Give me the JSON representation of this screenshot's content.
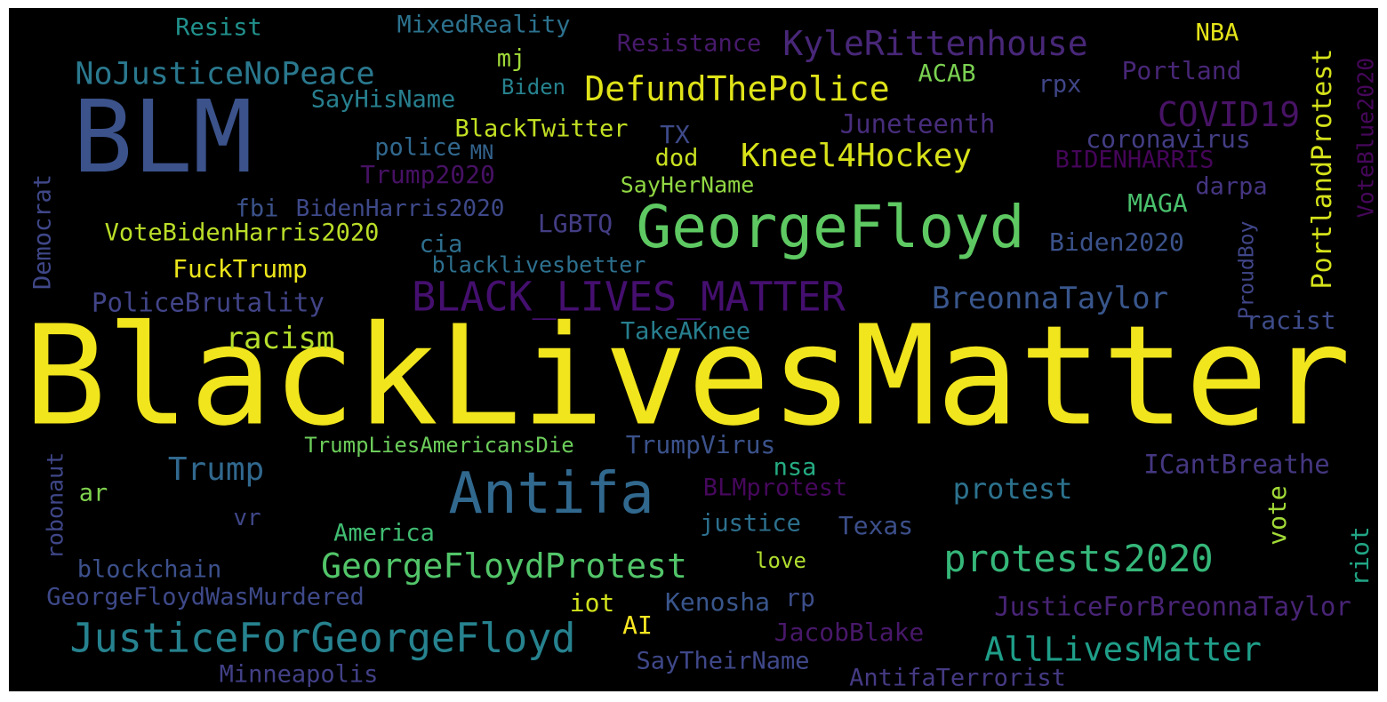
{
  "words": [
    {
      "text": "BlackLivesMatter",
      "color": "#f1e51d"
    },
    {
      "text": "BLM",
      "color": "#3b528b"
    },
    {
      "text": "GeorgeFloyd",
      "color": "#5ec962"
    },
    {
      "text": "Antifa",
      "color": "#31688e"
    },
    {
      "text": "JusticeForGeorgeFloyd",
      "color": "#26828e"
    },
    {
      "text": "BLACK_LIVES_MATTER",
      "color": "#440f6e"
    },
    {
      "text": "DefundThePolice",
      "color": "#dfe318"
    },
    {
      "text": "KyleRittenhouse",
      "color": "#482778"
    },
    {
      "text": "NoJusticeNoPeace",
      "color": "#2a788e"
    },
    {
      "text": "GeorgeFloydProtest",
      "color": "#52c569"
    },
    {
      "text": "protests2020",
      "color": "#35b779"
    },
    {
      "text": "COVID19",
      "color": "#471365"
    },
    {
      "text": "Kneel4Hockey",
      "color": "#d8e219"
    },
    {
      "text": "AllLivesMatter",
      "color": "#1f9e89"
    },
    {
      "text": "BreonnaTaylor",
      "color": "#39568c"
    },
    {
      "text": "Trump",
      "color": "#31688e"
    },
    {
      "text": "racism",
      "color": "#b5de2b"
    },
    {
      "text": "protest",
      "color": "#2c728e"
    },
    {
      "text": "PoliceBrutality",
      "color": "#414487"
    },
    {
      "text": "JusticeForBreonnaTaylor",
      "color": "#482475"
    },
    {
      "text": "ICantBreathe",
      "color": "#453781"
    },
    {
      "text": "Resist",
      "color": "#21918c"
    },
    {
      "text": "MixedReality",
      "color": "#2c728e"
    },
    {
      "text": "Resistance",
      "color": "#481a6c"
    },
    {
      "text": "NBA",
      "color": "#e5e419"
    },
    {
      "text": "mj",
      "color": "#a0da39"
    },
    {
      "text": "Biden",
      "color": "#26828e"
    },
    {
      "text": "ACAB",
      "color": "#7ad151"
    },
    {
      "text": "rpx",
      "color": "#404688"
    },
    {
      "text": "Portland",
      "color": "#482677"
    },
    {
      "text": "SayHisName",
      "color": "#277f8e"
    },
    {
      "text": "BlackTwitter",
      "color": "#c2df23"
    },
    {
      "text": "TX",
      "color": "#3e4a89"
    },
    {
      "text": "Juneteenth",
      "color": "#472d7b"
    },
    {
      "text": "police",
      "color": "#31688e"
    },
    {
      "text": "MN",
      "color": "#33638d"
    },
    {
      "text": "dod",
      "color": "#c8e020"
    },
    {
      "text": "coronavirus",
      "color": "#433e85"
    },
    {
      "text": "Trump2020",
      "color": "#471164"
    },
    {
      "text": "BIDENHARRIS",
      "color": "#450559"
    },
    {
      "text": "SayHerName",
      "color": "#90d743"
    },
    {
      "text": "darpa",
      "color": "#453581"
    },
    {
      "text": "fbi",
      "color": "#3b528b"
    },
    {
      "text": "BidenHarris2020",
      "color": "#3e4989"
    },
    {
      "text": "MAGA",
      "color": "#4ac16d"
    },
    {
      "text": "LGBTQ",
      "color": "#433d84"
    },
    {
      "text": "VoteBidenHarris2020",
      "color": "#bade28"
    },
    {
      "text": "cia",
      "color": "#2e6f8e"
    },
    {
      "text": "Biden2020",
      "color": "#3b528b"
    },
    {
      "text": "FuckTrump",
      "color": "#ece51b"
    },
    {
      "text": "blacklivesbetter",
      "color": "#2d708e"
    },
    {
      "text": "racist",
      "color": "#3e4c8a"
    },
    {
      "text": "TakeAKnee",
      "color": "#277f8e"
    },
    {
      "text": "TrumpLiesAmericansDie",
      "color": "#6ccd5a"
    },
    {
      "text": "TrumpVirus",
      "color": "#3b528b"
    },
    {
      "text": "nsa",
      "color": "#25ac82"
    },
    {
      "text": "ar",
      "color": "#7fd34e"
    },
    {
      "text": "BLMprotest",
      "color": "#46085c"
    },
    {
      "text": "vr",
      "color": "#3f4788"
    },
    {
      "text": "justice",
      "color": "#2d708e"
    },
    {
      "text": "Texas",
      "color": "#3c4f8a"
    },
    {
      "text": "America",
      "color": "#40bd72"
    },
    {
      "text": "blockchain",
      "color": "#3c508b"
    },
    {
      "text": "love",
      "color": "#b0dd2f"
    },
    {
      "text": "GeorgeFloydWasMurdered",
      "color": "#3e4989"
    },
    {
      "text": "iot",
      "color": "#d0e11c"
    },
    {
      "text": "Kenosha",
      "color": "#39568c"
    },
    {
      "text": "rp",
      "color": "#3d4e8a"
    },
    {
      "text": "AI",
      "color": "#fbe723"
    },
    {
      "text": "JacobBlake",
      "color": "#48186a"
    },
    {
      "text": "SayTheirName",
      "color": "#3f4889"
    },
    {
      "text": "Minneapolis",
      "color": "#424086"
    },
    {
      "text": "AntifaTerrorist",
      "color": "#443a83"
    },
    {
      "text": "Democrat",
      "color": "#3f4788"
    },
    {
      "text": "PortlandProtest",
      "color": "#d5e21a"
    },
    {
      "text": "VoteBlue2020",
      "color": "#46075a"
    },
    {
      "text": "ProudBoy",
      "color": "#404688"
    },
    {
      "text": "vote",
      "color": "#a2da37"
    },
    {
      "text": "riot",
      "color": "#21a685"
    },
    {
      "text": "robonaut",
      "color": "#3f4788"
    }
  ]
}
